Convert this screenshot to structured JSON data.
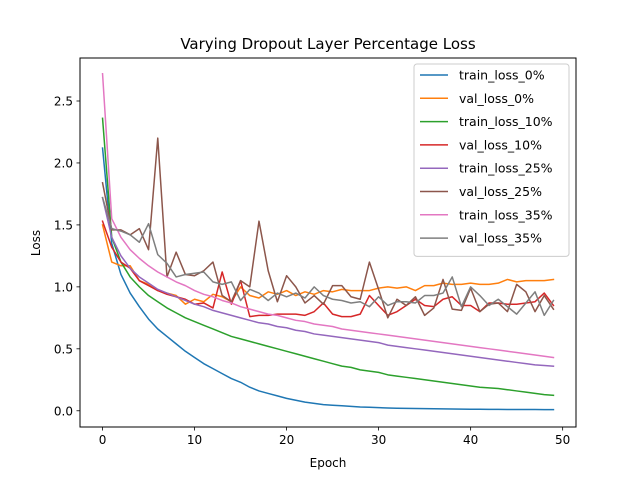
{
  "chart_data": {
    "type": "line",
    "title": "Varying Dropout Layer Percentage Loss",
    "xlabel": "Epoch",
    "ylabel": "Loss",
    "xlim": [
      -2.45,
      51.45
    ],
    "ylim": [
      -0.131,
      2.847
    ],
    "xticks": [
      0,
      10,
      20,
      30,
      40,
      50
    ],
    "yticks": [
      0.0,
      0.5,
      1.0,
      1.5,
      2.0,
      2.5
    ],
    "ytick_labels": [
      "0.0",
      "0.5",
      "1.0",
      "1.5",
      "2.0",
      "2.5"
    ],
    "grid": false,
    "legend_position": "top-right",
    "x": [
      0,
      1,
      2,
      3,
      4,
      5,
      6,
      7,
      8,
      9,
      10,
      11,
      12,
      13,
      14,
      15,
      16,
      17,
      18,
      19,
      20,
      21,
      22,
      23,
      24,
      25,
      26,
      27,
      28,
      29,
      30,
      31,
      32,
      33,
      34,
      35,
      36,
      37,
      38,
      39,
      40,
      41,
      42,
      43,
      44,
      45,
      46,
      47,
      48,
      49
    ],
    "series": [
      {
        "name": "train_loss_0%",
        "color": "#1f77b4",
        "values": [
          2.12,
          1.35,
          1.1,
          0.95,
          0.84,
          0.74,
          0.66,
          0.6,
          0.54,
          0.48,
          0.43,
          0.38,
          0.34,
          0.3,
          0.26,
          0.23,
          0.19,
          0.16,
          0.14,
          0.12,
          0.1,
          0.085,
          0.07,
          0.06,
          0.05,
          0.045,
          0.04,
          0.035,
          0.03,
          0.028,
          0.025,
          0.022,
          0.02,
          0.019,
          0.018,
          0.017,
          0.016,
          0.015,
          0.014,
          0.013,
          0.012,
          0.012,
          0.011,
          0.011,
          0.01,
          0.01,
          0.01,
          0.01,
          0.009,
          0.009
        ]
      },
      {
        "name": "val_loss_0%",
        "color": "#ff7f0e",
        "values": [
          1.5,
          1.2,
          1.17,
          1.17,
          1.05,
          1.02,
          0.97,
          0.95,
          0.93,
          0.86,
          0.9,
          0.88,
          0.94,
          0.92,
          0.88,
          1.0,
          0.93,
          0.91,
          0.96,
          0.94,
          0.97,
          0.93,
          0.96,
          0.94,
          0.97,
          0.96,
          0.98,
          0.97,
          0.97,
          0.97,
          0.99,
          1.0,
          0.99,
          1.0,
          0.97,
          1.01,
          1.01,
          1.03,
          1.02,
          1.02,
          1.03,
          1.02,
          1.02,
          1.03,
          1.06,
          1.04,
          1.05,
          1.05,
          1.05,
          1.06
        ]
      },
      {
        "name": "train_loss_10%",
        "color": "#2ca02c",
        "values": [
          2.36,
          1.4,
          1.2,
          1.08,
          1.0,
          0.93,
          0.88,
          0.83,
          0.79,
          0.75,
          0.72,
          0.69,
          0.66,
          0.63,
          0.6,
          0.58,
          0.56,
          0.54,
          0.52,
          0.5,
          0.48,
          0.46,
          0.44,
          0.42,
          0.4,
          0.38,
          0.36,
          0.35,
          0.33,
          0.32,
          0.31,
          0.29,
          0.28,
          0.27,
          0.26,
          0.25,
          0.24,
          0.23,
          0.22,
          0.21,
          0.2,
          0.19,
          0.185,
          0.18,
          0.17,
          0.16,
          0.15,
          0.14,
          0.13,
          0.125
        ]
      },
      {
        "name": "val_loss_10%",
        "color": "#d62728",
        "values": [
          1.53,
          1.32,
          1.2,
          1.15,
          1.05,
          1.01,
          0.97,
          0.94,
          0.92,
          0.9,
          0.86,
          0.87,
          0.83,
          1.12,
          0.86,
          1.05,
          0.76,
          0.77,
          0.77,
          0.78,
          0.78,
          0.78,
          0.77,
          0.8,
          0.87,
          0.78,
          0.76,
          0.76,
          0.78,
          0.93,
          0.85,
          0.77,
          0.8,
          0.85,
          0.9,
          0.85,
          0.84,
          0.9,
          0.92,
          0.85,
          0.85,
          0.8,
          0.87,
          0.87,
          0.86,
          0.86,
          0.87,
          0.88,
          0.95,
          0.85
        ]
      },
      {
        "name": "train_loss_25%",
        "color": "#9467bd",
        "values": [
          1.72,
          1.4,
          1.25,
          1.15,
          1.08,
          1.03,
          0.98,
          0.95,
          0.92,
          0.89,
          0.86,
          0.84,
          0.81,
          0.79,
          0.77,
          0.75,
          0.73,
          0.71,
          0.7,
          0.68,
          0.67,
          0.65,
          0.64,
          0.62,
          0.61,
          0.6,
          0.59,
          0.58,
          0.57,
          0.56,
          0.55,
          0.53,
          0.52,
          0.51,
          0.5,
          0.49,
          0.48,
          0.47,
          0.46,
          0.45,
          0.44,
          0.43,
          0.42,
          0.41,
          0.4,
          0.39,
          0.38,
          0.37,
          0.365,
          0.36
        ]
      },
      {
        "name": "val_loss_25%",
        "color": "#8c564b",
        "values": [
          1.84,
          1.46,
          1.46,
          1.42,
          1.47,
          1.3,
          2.2,
          1.08,
          1.28,
          1.1,
          1.09,
          1.13,
          1.2,
          0.93,
          0.88,
          1.05,
          1.0,
          1.53,
          1.13,
          0.88,
          1.09,
          1.0,
          0.87,
          0.93,
          0.86,
          1.01,
          1.01,
          0.92,
          0.9,
          1.2,
          0.98,
          0.75,
          0.9,
          0.85,
          0.92,
          0.77,
          0.83,
          1.06,
          0.82,
          0.81,
          0.99,
          0.8,
          0.86,
          0.87,
          0.8,
          1.02,
          0.96,
          0.8,
          0.93,
          0.82
        ]
      },
      {
        "name": "train_loss_35%",
        "color": "#e377c2",
        "values": [
          2.72,
          1.55,
          1.4,
          1.3,
          1.23,
          1.17,
          1.12,
          1.08,
          1.04,
          1.01,
          0.97,
          0.94,
          0.92,
          0.89,
          0.87,
          0.84,
          0.82,
          0.8,
          0.78,
          0.77,
          0.75,
          0.73,
          0.72,
          0.7,
          0.69,
          0.68,
          0.66,
          0.65,
          0.64,
          0.63,
          0.62,
          0.61,
          0.6,
          0.59,
          0.58,
          0.57,
          0.56,
          0.55,
          0.54,
          0.53,
          0.52,
          0.51,
          0.5,
          0.49,
          0.48,
          0.47,
          0.46,
          0.45,
          0.44,
          0.43
        ]
      },
      {
        "name": "val_loss_35%",
        "color": "#7f7f7f",
        "values": [
          1.72,
          1.47,
          1.45,
          1.42,
          1.36,
          1.51,
          1.26,
          1.19,
          1.08,
          1.1,
          1.11,
          1.12,
          1.04,
          1.02,
          1.04,
          0.89,
          0.98,
          0.95,
          0.89,
          0.95,
          0.92,
          0.95,
          0.91,
          1.0,
          0.93,
          0.9,
          0.89,
          0.87,
          0.88,
          0.84,
          0.92,
          0.85,
          0.88,
          0.88,
          0.87,
          0.93,
          0.93,
          0.95,
          1.08,
          0.84,
          1.0,
          0.93,
          0.85,
          0.9,
          0.84,
          0.78,
          0.87,
          0.96,
          0.77,
          0.89
        ]
      }
    ]
  }
}
